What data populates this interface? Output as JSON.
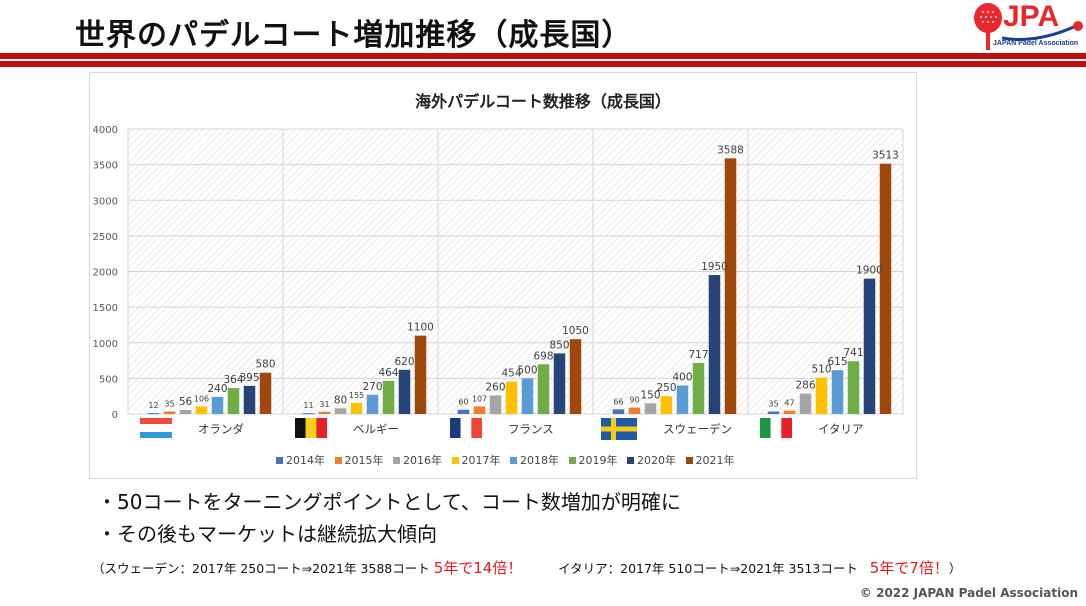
{
  "header": {
    "title": "世界のパデルコート増加推移（成長国）",
    "logo_text": "JPA",
    "logo_subtitle": "JAPAN Padel Association",
    "brand_color": "#c00d0d"
  },
  "chart_data": {
    "type": "bar",
    "title": "海外パデルコート数推移（成長国）",
    "xlabel": "",
    "ylabel": "",
    "ylim": [
      0,
      4000
    ],
    "yticks": [
      0,
      500,
      1000,
      1500,
      2000,
      2500,
      3000,
      3500,
      4000
    ],
    "grid": true,
    "legend_position": "bottom",
    "categories": [
      "オランダ",
      "ベルギー",
      "フランス",
      "スウェーデン",
      "イタリア"
    ],
    "series": [
      {
        "name": "2014年",
        "color": "#4472c4",
        "values": [
          12,
          11,
          60,
          66,
          35
        ]
      },
      {
        "name": "2015年",
        "color": "#ed7d31",
        "values": [
          35,
          31,
          107,
          90,
          47
        ]
      },
      {
        "name": "2016年",
        "color": "#a5a5a5",
        "values": [
          56,
          80,
          260,
          150,
          286
        ]
      },
      {
        "name": "2017年",
        "color": "#ffc000",
        "values": [
          106,
          155,
          454,
          250,
          510
        ]
      },
      {
        "name": "2018年",
        "color": "#5b9bd5",
        "values": [
          240,
          270,
          500,
          400,
          615
        ]
      },
      {
        "name": "2019年",
        "color": "#70ad47",
        "values": [
          364,
          464,
          698,
          717,
          741
        ]
      },
      {
        "name": "2020年",
        "color": "#264478",
        "values": [
          395,
          620,
          850,
          1950,
          1900
        ]
      },
      {
        "name": "2021年",
        "color": "#9e480e",
        "values": [
          580,
          1100,
          1050,
          3588,
          3513
        ]
      }
    ],
    "flags": [
      {
        "country": "オランダ",
        "icon": "flag-netherlands-icon",
        "colors": [
          "#f04a3c",
          "#ffffff",
          "#2f9bd8"
        ],
        "orientation": "horizontal"
      },
      {
        "country": "ベルギー",
        "icon": "flag-belgium-icon",
        "colors": [
          "#111111",
          "#f7d117",
          "#e8202a"
        ],
        "orientation": "vertical"
      },
      {
        "country": "フランス",
        "icon": "flag-france-icon",
        "colors": [
          "#1b3b7a",
          "#ffffff",
          "#f0433a"
        ],
        "orientation": "vertical"
      },
      {
        "country": "スウェーデン",
        "icon": "flag-sweden-icon",
        "colors": [
          "#1f5aa6",
          "#f8cb14"
        ],
        "orientation": "cross"
      },
      {
        "country": "イタリア",
        "icon": "flag-italy-icon",
        "colors": [
          "#1e9445",
          "#ffffff",
          "#ea1f2c"
        ],
        "orientation": "vertical"
      }
    ]
  },
  "bullets": [
    "・50コートをターニングポイントとして、コート数増加が明確に",
    "・その後もマーケットは継続拡大傾向"
  ],
  "note": {
    "open": "（",
    "sweden": "スウェーデン：2017年 250コート⇒2021年 3588コート",
    "sweden_highlight": "5年で14倍！",
    "italy": "イタリア：2017年 510コート⇒2021年 3513コート",
    "italy_highlight": "5年で7倍！",
    "close": "）",
    "highlight_color": "#e8191c"
  },
  "footer": {
    "copyright": "© 2022 JAPAN Padel Association"
  }
}
